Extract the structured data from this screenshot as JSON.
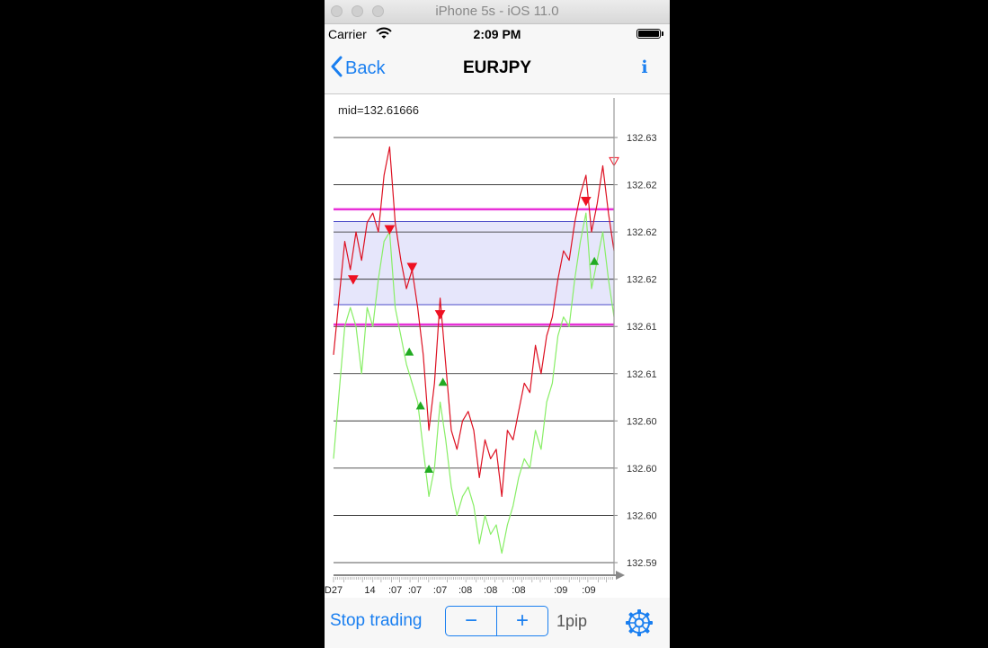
{
  "simulator": {
    "title": "iPhone 5s - iOS 11.0"
  },
  "status_bar": {
    "carrier": "Carrier",
    "time": "2:09 PM"
  },
  "nav": {
    "back_label": "Back",
    "title": "EURJPY",
    "info_label": "i"
  },
  "bottom_bar": {
    "stop_label": "Stop trading",
    "minus_label": "−",
    "plus_label": "+",
    "step_value": "1pip"
  },
  "colors": {
    "accent": "#1a7ff0",
    "bid_line": "#dd1122",
    "ask_line": "#88ee66",
    "band_fill": "#e6e6fb",
    "band_edge": "#4c4cc8",
    "limit_line": "#e830d8",
    "sell_marker": "#ee1122",
    "buy_marker": "#22aa22"
  },
  "chart_data": {
    "type": "line",
    "mid_label": "mid=132.61666",
    "ylim": [
      132.59,
      132.63
    ],
    "y_tick_labels": [
      {
        "value": 132.63,
        "label": "132.63"
      },
      {
        "value": 132.625,
        "label": "132.62"
      },
      {
        "value": 132.62,
        "label": "132.62"
      },
      {
        "value": 132.615,
        "label": "132.62"
      },
      {
        "value": 132.61,
        "label": "132.61"
      },
      {
        "value": 132.605,
        "label": "132.61"
      },
      {
        "value": 132.6,
        "label": "132.60"
      },
      {
        "value": 132.595,
        "label": "132.60"
      },
      {
        "value": 132.59,
        "label": "132.60"
      },
      {
        "value": 132.585,
        "label": "132.59"
      }
    ],
    "x_tick_labels": [
      {
        "x": 0.0,
        "label": "D27"
      },
      {
        "x": 0.13,
        "label": "14"
      },
      {
        "x": 0.22,
        "label": ":07"
      },
      {
        "x": 0.29,
        "label": ":07"
      },
      {
        "x": 0.38,
        "label": ":07"
      },
      {
        "x": 0.47,
        "label": ":08"
      },
      {
        "x": 0.56,
        "label": ":08"
      },
      {
        "x": 0.66,
        "label": ":08"
      },
      {
        "x": 0.81,
        "label": ":09"
      },
      {
        "x": 0.91,
        "label": ":09"
      }
    ],
    "band": {
      "low": 132.6123,
      "high": 132.6211
    },
    "limits": [
      132.6224,
      132.6102
    ],
    "series": [
      {
        "x": [
          0,
          0.02,
          0.04,
          0.06,
          0.08,
          0.1,
          0.12,
          0.14,
          0.16,
          0.18,
          0.2,
          0.22,
          0.24,
          0.26,
          0.28,
          0.3,
          0.32,
          0.34,
          0.36,
          0.38,
          0.4,
          0.42,
          0.44,
          0.46,
          0.48,
          0.5,
          0.52,
          0.54,
          0.56,
          0.58,
          0.6,
          0.62,
          0.64,
          0.66,
          0.68,
          0.7,
          0.72,
          0.74,
          0.76,
          0.78,
          0.8,
          0.82,
          0.84,
          0.86,
          0.88,
          0.9,
          0.92,
          0.94,
          0.96,
          0.98,
          1.0
        ],
        "values": [
          132.607,
          132.613,
          132.619,
          132.616,
          132.62,
          132.617,
          132.621,
          132.622,
          132.62,
          132.626,
          132.629,
          132.621,
          132.617,
          132.614,
          132.616,
          132.612,
          132.607,
          132.599,
          132.604,
          132.613,
          132.606,
          132.599,
          132.597,
          132.6,
          132.601,
          132.599,
          132.594,
          132.598,
          132.596,
          132.597,
          132.592,
          132.599,
          132.598,
          132.601,
          132.604,
          132.603,
          132.608,
          132.605,
          132.609,
          132.611,
          132.615,
          132.618,
          132.617,
          132.621,
          132.624,
          132.626,
          132.62,
          132.623,
          132.627,
          132.622,
          132.618
        ]
      },
      {
        "x": [
          0,
          0.02,
          0.04,
          0.06,
          0.08,
          0.1,
          0.12,
          0.14,
          0.16,
          0.18,
          0.2,
          0.22,
          0.24,
          0.26,
          0.28,
          0.3,
          0.32,
          0.34,
          0.36,
          0.38,
          0.4,
          0.42,
          0.44,
          0.46,
          0.48,
          0.5,
          0.52,
          0.54,
          0.56,
          0.58,
          0.6,
          0.62,
          0.64,
          0.66,
          0.68,
          0.7,
          0.72,
          0.74,
          0.76,
          0.78,
          0.8,
          0.82,
          0.84,
          0.86,
          0.88,
          0.9,
          0.92,
          0.94,
          0.96,
          0.98,
          1.0
        ],
        "values": [
          132.596,
          132.603,
          132.61,
          132.612,
          132.61,
          132.605,
          132.612,
          132.61,
          132.615,
          132.619,
          132.62,
          132.612,
          132.609,
          132.606,
          132.604,
          132.602,
          132.597,
          132.592,
          132.595,
          132.602,
          132.598,
          132.593,
          132.59,
          132.592,
          132.593,
          132.591,
          132.587,
          132.59,
          132.588,
          132.589,
          132.586,
          132.589,
          132.591,
          132.594,
          132.596,
          132.595,
          132.599,
          132.597,
          132.602,
          132.604,
          132.609,
          132.611,
          132.61,
          132.615,
          132.619,
          132.622,
          132.614,
          132.617,
          132.62,
          132.615,
          132.611
        ]
      }
    ],
    "sell_markers": [
      {
        "x": 0.07,
        "y": 132.6149
      },
      {
        "x": 0.2,
        "y": 132.6202
      },
      {
        "x": 0.28,
        "y": 132.6162
      },
      {
        "x": 0.38,
        "y": 132.6112
      },
      {
        "x": 0.9,
        "y": 132.6232
      },
      {
        "x": 1.0,
        "y": 132.6274
      }
    ],
    "buy_markers": [
      {
        "x": 0.27,
        "y": 132.6073
      },
      {
        "x": 0.31,
        "y": 132.6016
      },
      {
        "x": 0.34,
        "y": 132.5949
      },
      {
        "x": 0.39,
        "y": 132.6041
      },
      {
        "x": 0.93,
        "y": 132.6169
      }
    ]
  }
}
